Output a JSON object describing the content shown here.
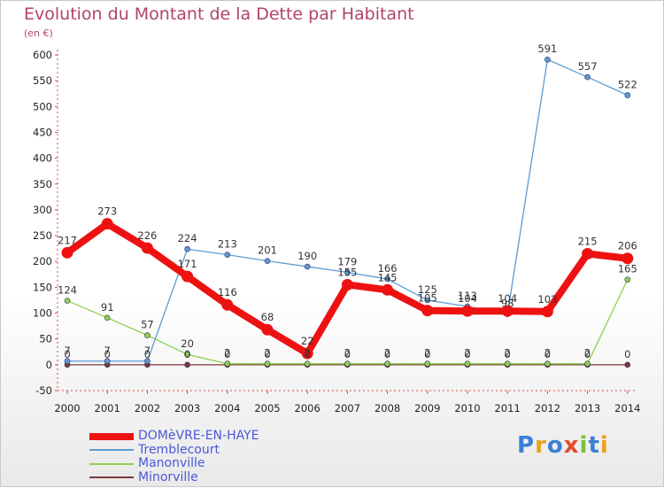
{
  "title": "Evolution du Montant de la Dette par Habitant",
  "unit": "(en €)",
  "logo_text": "Proxiti",
  "chart_data": {
    "type": "line",
    "x": [
      "2000",
      "2001",
      "2002",
      "2003",
      "2004",
      "2005",
      "2006",
      "2007",
      "2008",
      "2009",
      "2010",
      "2011",
      "2012",
      "2013",
      "2014"
    ],
    "ylim": [
      -50,
      600
    ],
    "yticks": [
      "-50",
      "0",
      "50",
      "100",
      "150",
      "200",
      "250",
      "300",
      "350",
      "400",
      "450",
      "500",
      "550",
      "600"
    ],
    "grid": false,
    "legend_position": "bottom-left",
    "series": [
      {
        "name": "DOMèVRE-EN-HAYE",
        "color": "#ee1111",
        "values": [
          217,
          273,
          226,
          171,
          116,
          68,
          22,
          155,
          145,
          105,
          104,
          104,
          103,
          215,
          206
        ],
        "labels": [
          "217",
          "273",
          "226",
          "171",
          "116",
          "68",
          "22",
          "155",
          "145",
          "105",
          "104",
          "104",
          "103",
          "215",
          "206"
        ]
      },
      {
        "name": "Tremblecourt",
        "color": "#5b9bd5",
        "values": [
          7,
          7,
          7,
          224,
          213,
          201,
          190,
          179,
          166,
          125,
          113,
          98,
          591,
          557,
          522
        ],
        "labels": [
          "7",
          "7",
          "7",
          "224",
          "213",
          "201",
          "190",
          "179",
          "166",
          "125",
          "113",
          "98",
          "591",
          "557",
          "522"
        ]
      },
      {
        "name": "Manonville",
        "color": "#8fd14f",
        "values": [
          124,
          91,
          57,
          20,
          2,
          2,
          2,
          2,
          2,
          2,
          2,
          2,
          2,
          2,
          165
        ],
        "labels": [
          "124",
          "91",
          "57",
          "20",
          "2",
          "2",
          "2",
          "2",
          "2",
          "2",
          "2",
          "2",
          "2",
          "2",
          "165"
        ]
      },
      {
        "name": "Minorville",
        "color": "#7a3a3a",
        "values": [
          0,
          0,
          0,
          0,
          0,
          0,
          0,
          0,
          0,
          0,
          0,
          0,
          0,
          0,
          0
        ],
        "labels": [
          "0",
          "0",
          "0",
          "0",
          "0",
          "0",
          "0",
          "0",
          "0",
          "0",
          "0",
          "0",
          "0",
          "0",
          "0"
        ]
      }
    ]
  }
}
